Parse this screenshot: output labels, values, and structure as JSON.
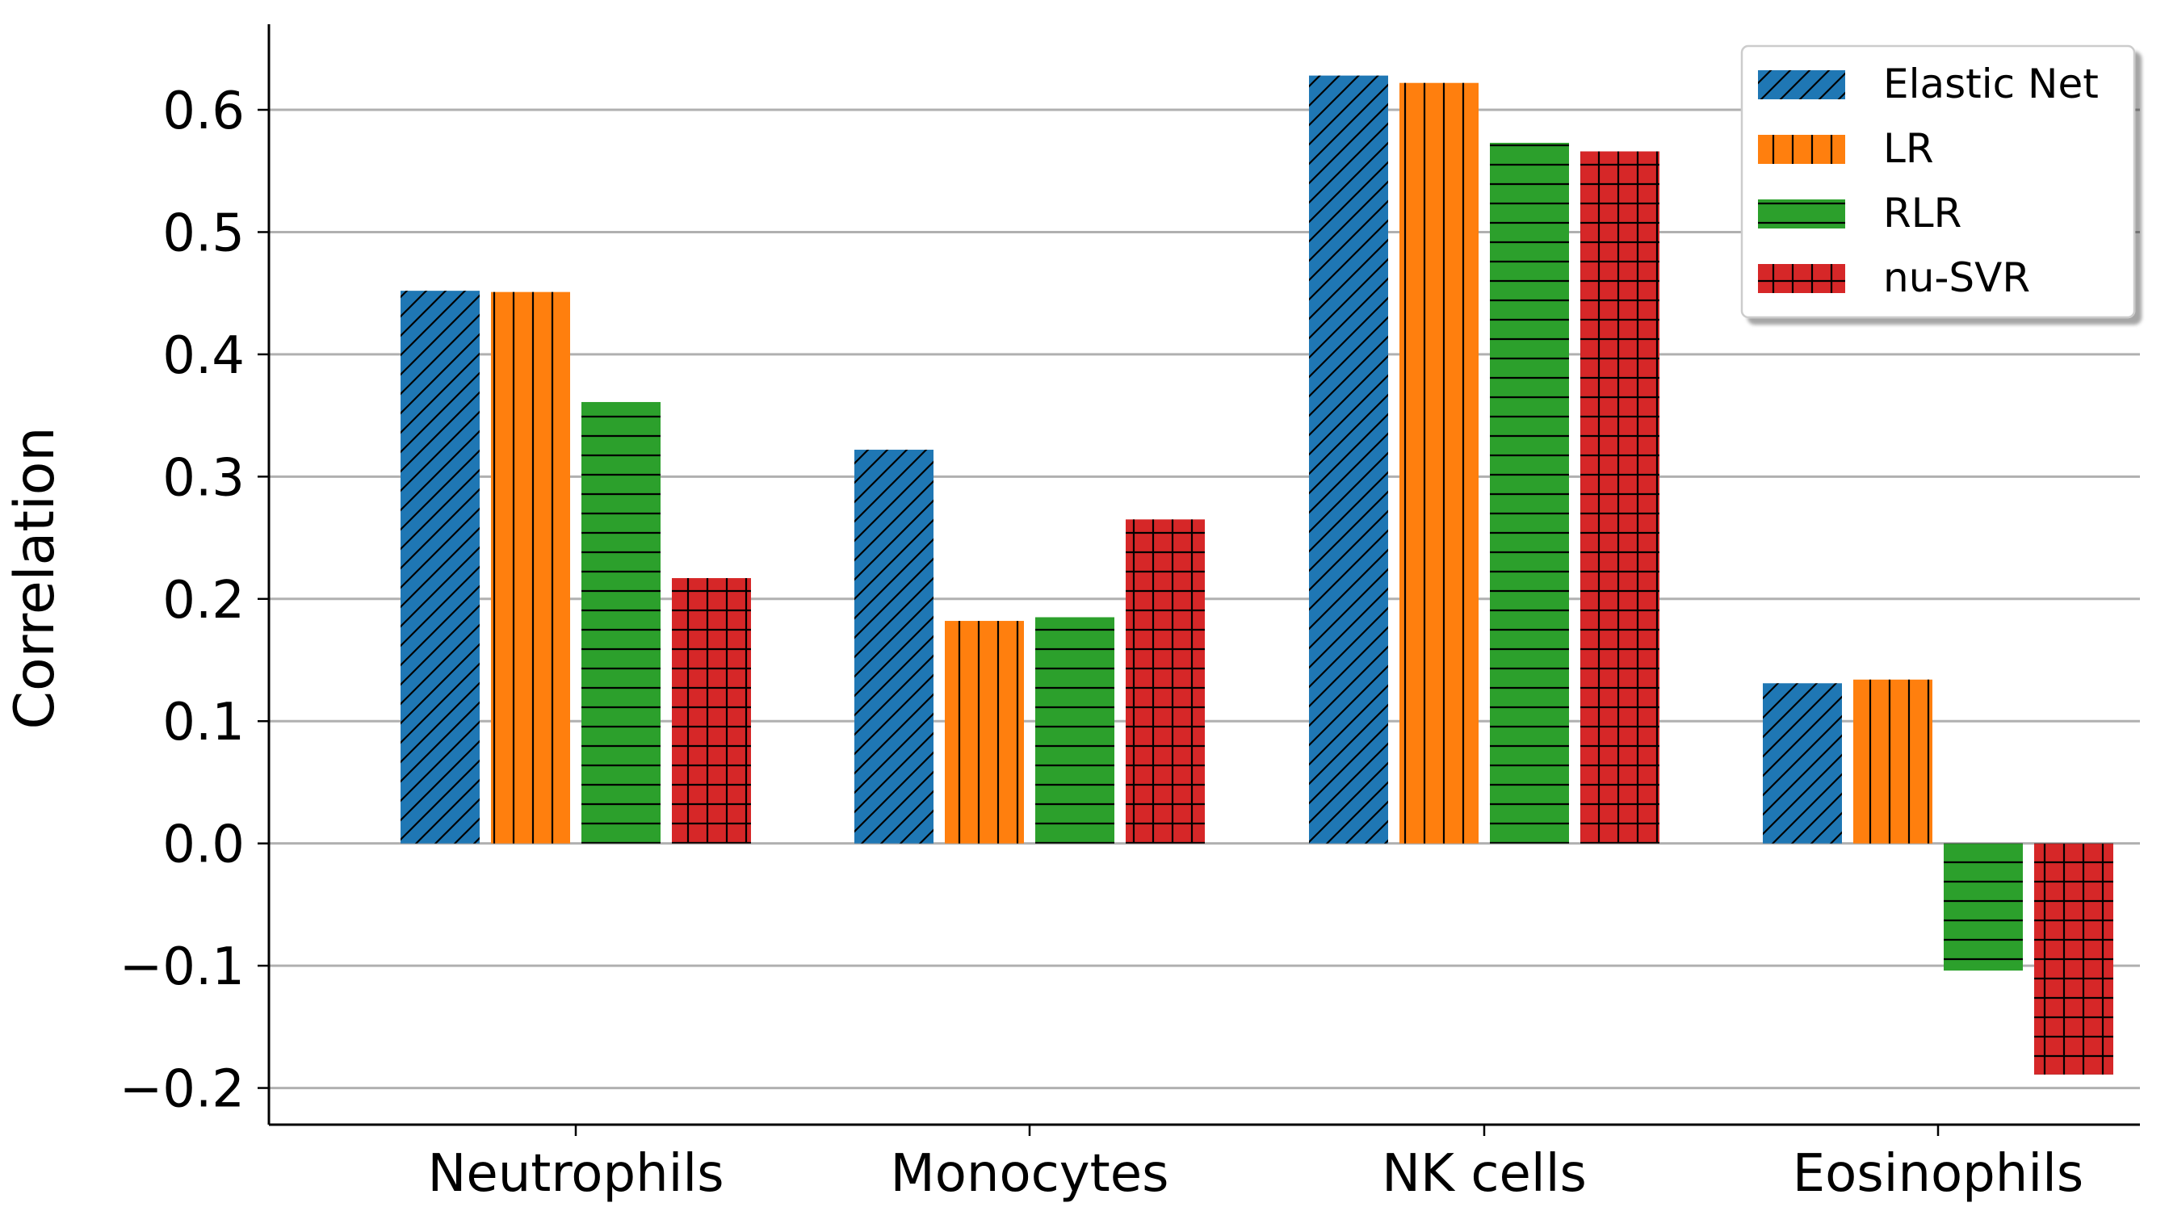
{
  "chart_data": {
    "type": "bar",
    "categories": [
      "Neutrophils",
      "Monocytes",
      "NK cells",
      "Eosinophils"
    ],
    "series": [
      {
        "name": "Elastic Net",
        "color": "#1f77b4",
        "hatch": "diagonal",
        "values": [
          0.452,
          0.322,
          0.628,
          0.131
        ]
      },
      {
        "name": "LR",
        "color": "#ff7f0e",
        "hatch": "vertical",
        "values": [
          0.451,
          0.182,
          0.622,
          0.134
        ]
      },
      {
        "name": "RLR",
        "color": "#2ca02c",
        "hatch": "horizontal",
        "values": [
          0.361,
          0.185,
          0.573,
          -0.104
        ]
      },
      {
        "name": "nu-SVR",
        "color": "#d62728",
        "hatch": "grid",
        "values": [
          0.217,
          0.265,
          0.566,
          -0.189
        ]
      }
    ],
    "xlabel": "",
    "ylabel": "Correlation",
    "ylim": [
      -0.23,
      0.67
    ],
    "yticks": [
      -0.2,
      -0.1,
      0.0,
      0.1,
      0.2,
      0.3,
      0.4,
      0.5,
      0.6
    ],
    "ytick_labels": [
      "−0.2",
      "−0.1",
      "0.0",
      "0.1",
      "0.2",
      "0.3",
      "0.4",
      "0.5",
      "0.6"
    ],
    "grid": "horizontal",
    "legend_position": "top-right"
  }
}
